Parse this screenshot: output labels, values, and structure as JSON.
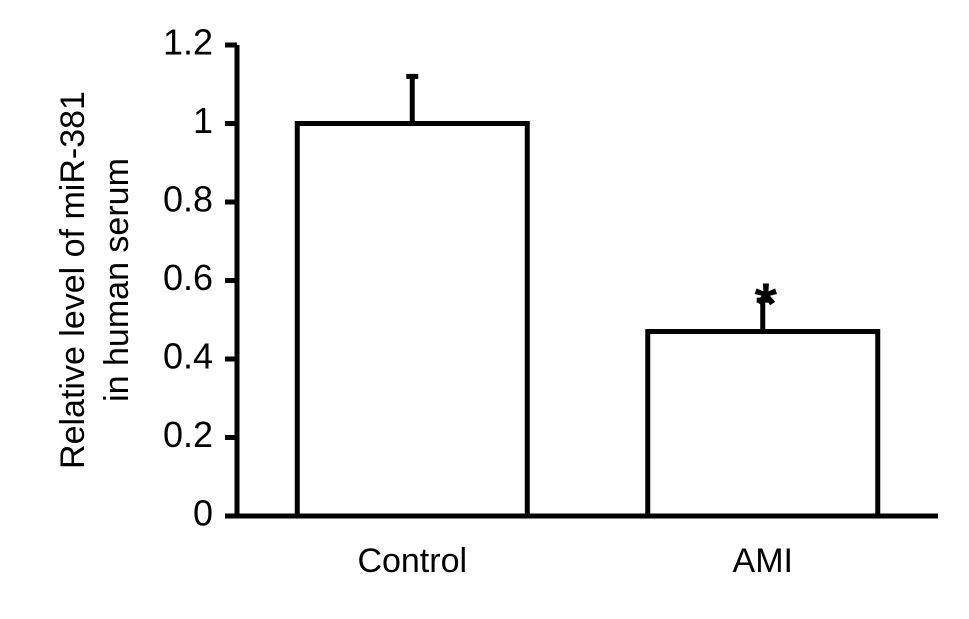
{
  "chart_data": {
    "type": "bar",
    "title": "",
    "xlabel": "",
    "ylabel_lines": [
      "Relative level of miR-381",
      "in human serum"
    ],
    "categories": [
      "Control",
      "AMI"
    ],
    "values": [
      1.0,
      0.47
    ],
    "error_upper": [
      0.12,
      0.08
    ],
    "significance": [
      "",
      "*"
    ],
    "ylim": [
      0,
      1.2
    ],
    "yticks": [
      0,
      0.2,
      0.4,
      0.6,
      0.8,
      1,
      1.2
    ],
    "ytick_labels": [
      "0",
      "0.2",
      "0.4",
      "0.6",
      "0.8",
      "1",
      "1.2"
    ],
    "grid": false,
    "legend": "none",
    "colors": {
      "bar_fill": "#ffffff",
      "bar_stroke": "#000000",
      "axis": "#000000"
    }
  }
}
